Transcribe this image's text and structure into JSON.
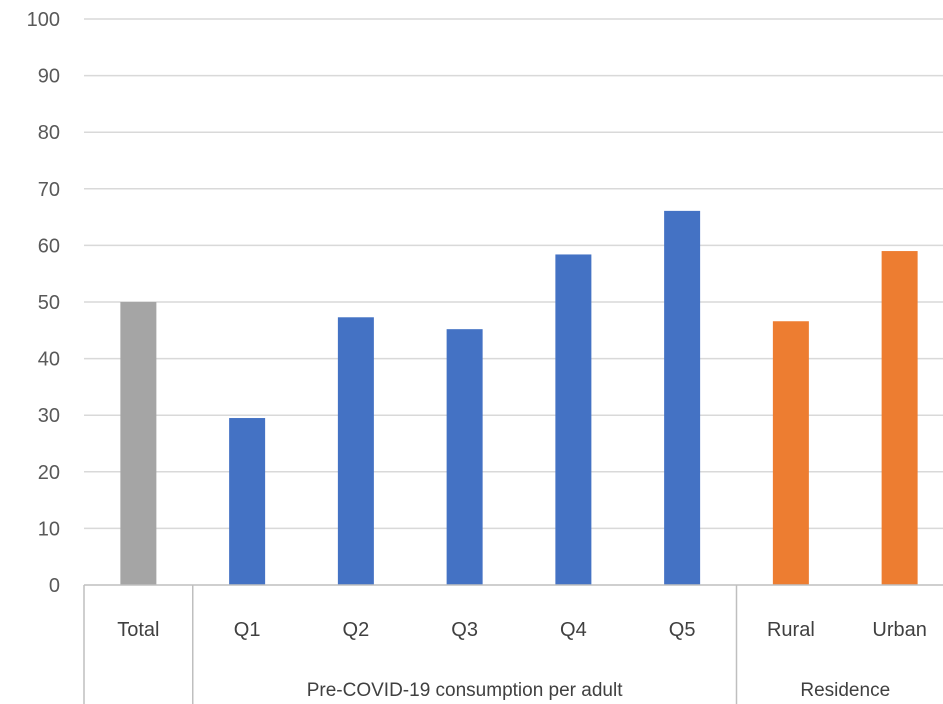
{
  "chart_data": {
    "type": "bar",
    "title": "",
    "xlabel": "",
    "ylabel": "",
    "ylim": [
      0,
      100
    ],
    "yticks": [
      0,
      10,
      20,
      30,
      40,
      50,
      60,
      70,
      80,
      90,
      100
    ],
    "grid": true,
    "legend": "none",
    "categories": [
      "Total",
      "Q1",
      "Q2",
      "Q3",
      "Q4",
      "Q5",
      "Rural",
      "Urban"
    ],
    "values": [
      50,
      29.5,
      47.3,
      45.2,
      58.4,
      66.1,
      46.6,
      59
    ],
    "bar_colors": [
      "#a5a5a5",
      "#4472c4",
      "#4472c4",
      "#4472c4",
      "#4472c4",
      "#4472c4",
      "#ed7d31",
      "#ed7d31"
    ],
    "groups": [
      {
        "label": "",
        "categories": [
          "Total"
        ]
      },
      {
        "label": "Pre-COVID-19 consumption per adult",
        "categories": [
          "Q1",
          "Q2",
          "Q3",
          "Q4",
          "Q5"
        ]
      },
      {
        "label": "Residence",
        "categories": [
          "Rural",
          "Urban"
        ]
      }
    ]
  },
  "colors": {
    "gridline": "#d9d9d9",
    "axis": "#bfbfbf"
  }
}
